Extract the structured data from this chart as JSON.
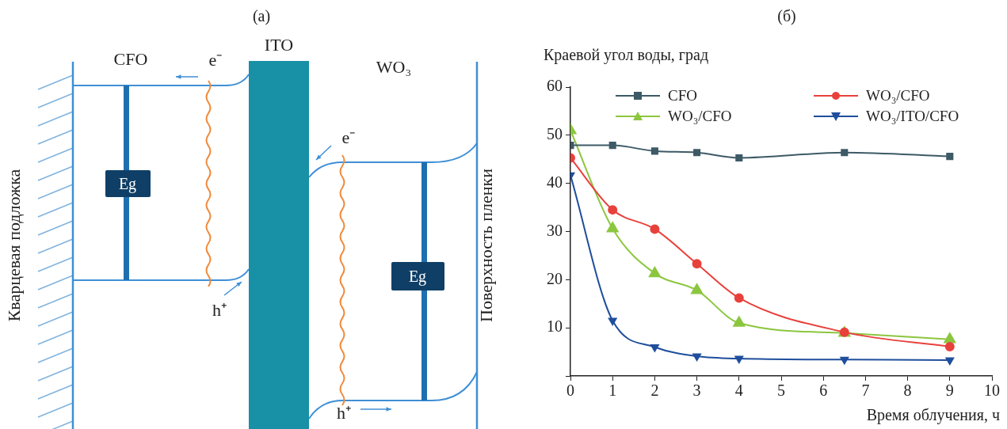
{
  "chart_data": [
    {
      "type": "other",
      "title": "(а)",
      "annotations": [
        "CFO",
        "ITO",
        "WO₃",
        "e⁻",
        "h⁺",
        "Eg",
        "e⁻",
        "h⁺",
        "Eg",
        "Кварцевая подложка",
        "Поверхность пленки"
      ]
    },
    {
      "type": "line",
      "title": "(б)",
      "xlabel": "Время облучения, ч",
      "ylabel": "Краевой угол воды, град",
      "x": [
        0,
        1,
        2,
        3,
        4,
        6.5,
        9
      ],
      "xlim": [
        0,
        10
      ],
      "xticks": [
        0,
        1,
        2,
        3,
        4,
        5,
        6,
        7,
        8,
        9,
        10
      ],
      "ylim": [
        0,
        60
      ],
      "yticks": [
        {
          "value": 0,
          "label": null
        },
        10,
        20,
        30,
        40,
        50,
        60
      ],
      "grid": false,
      "legend": "top",
      "line_style": "solid",
      "series": [
        {
          "name": "CFO",
          "color": "#3d5a66",
          "marker": "square",
          "values": [
            47.9,
            47.9,
            46.7,
            46.4,
            45.3,
            46.4,
            45.6
          ]
        },
        {
          "name": "WO₃/CFO",
          "color": "#e8413c",
          "marker": "circle",
          "values": [
            45.3,
            34.5,
            30.5,
            23.3,
            16.2,
            9.1,
            6.1
          ]
        },
        {
          "name": "WO₃/CFO",
          "color": "#8cc63f",
          "marker": "triangle",
          "values": [
            51,
            30.6,
            21.3,
            17.8,
            11.0,
            8.9,
            7.6
          ]
        },
        {
          "name": "WO₃/ITO/CFO",
          "color": "#1f4e9c",
          "marker": "triangle-down",
          "values": [
            41.7,
            11.5,
            6.0,
            4.1,
            3.6,
            3.4,
            3.3
          ]
        }
      ]
    }
  ]
}
